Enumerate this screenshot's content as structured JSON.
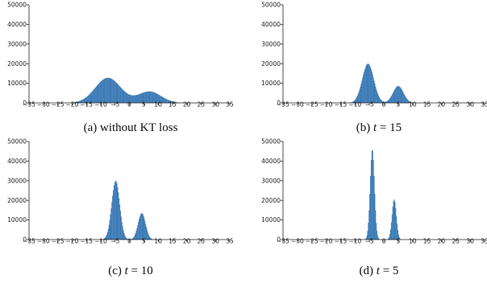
{
  "colors": {
    "bar": "#3d7bb6",
    "axis": "#222222",
    "text": "#111111"
  },
  "chart_data": [
    {
      "type": "bar",
      "caption": {
        "prefix": "(a)",
        "text": "without KT loss"
      },
      "xlim": [
        -35,
        35
      ],
      "ylim": [
        0,
        50000
      ],
      "xticks": [
        "−35",
        "−30",
        "−25",
        "−20",
        "−15",
        "−10",
        "−5",
        "0",
        "5",
        "10",
        "15",
        "20",
        "25",
        "30",
        "35"
      ],
      "yticks": [
        "0",
        "10000",
        "20000",
        "30000",
        "40000",
        "50000"
      ],
      "grid": false,
      "bin_width": 0.25,
      "components": [
        {
          "mean": -7.5,
          "sd": 4.4,
          "peak": 12800
        },
        {
          "mean": 7.0,
          "sd": 4.0,
          "peak": 5800
        }
      ]
    },
    {
      "type": "bar",
      "caption": {
        "prefix": "(b)",
        "var": "t",
        "rest": " = 15"
      },
      "xlim": [
        -35,
        35
      ],
      "ylim": [
        0,
        50000
      ],
      "xticks": [
        "−35",
        "−30",
        "−25",
        "−20",
        "−15",
        "−10",
        "−5",
        "0",
        "5",
        "10",
        "15",
        "20",
        "25",
        "30",
        "35"
      ],
      "yticks": [
        "0",
        "10000",
        "20000",
        "30000",
        "40000",
        "50000"
      ],
      "grid": false,
      "bin_width": 0.25,
      "components": [
        {
          "mean": -5.5,
          "sd": 2.0,
          "peak": 20000
        },
        {
          "mean": 5.0,
          "sd": 1.8,
          "peak": 8600
        }
      ]
    },
    {
      "type": "bar",
      "caption": {
        "prefix": "(c)",
        "var": "t",
        "rest": " = 10"
      },
      "xlim": [
        -35,
        35
      ],
      "ylim": [
        0,
        50000
      ],
      "xticks": [
        "−35",
        "−30",
        "−25",
        "−20",
        "−15",
        "−10",
        "−5",
        "0",
        "5",
        "10",
        "15",
        "20",
        "25",
        "30",
        "35"
      ],
      "yticks": [
        "0",
        "10000",
        "20000",
        "30000",
        "40000",
        "50000"
      ],
      "grid": false,
      "bin_width": 0.25,
      "components": [
        {
          "mean": -4.8,
          "sd": 1.4,
          "peak": 30000
        },
        {
          "mean": 4.3,
          "sd": 1.3,
          "peak": 13500
        }
      ]
    },
    {
      "type": "bar",
      "caption": {
        "prefix": "(d)",
        "var": "t",
        "rest": " = 5"
      },
      "xlim": [
        -35,
        35
      ],
      "ylim": [
        0,
        50000
      ],
      "xticks": [
        "−35",
        "−30",
        "−25",
        "−20",
        "−15",
        "−10",
        "−5",
        "0",
        "5",
        "10",
        "15",
        "20",
        "25",
        "30",
        "35"
      ],
      "yticks": [
        "0",
        "10000",
        "20000",
        "30000",
        "40000",
        "50000"
      ],
      "grid": false,
      "bin_width": 0.25,
      "components": [
        {
          "mean": -4.0,
          "sd": 0.75,
          "peak": 46000
        },
        {
          "mean": 3.6,
          "sd": 0.75,
          "peak": 20500
        }
      ]
    }
  ]
}
